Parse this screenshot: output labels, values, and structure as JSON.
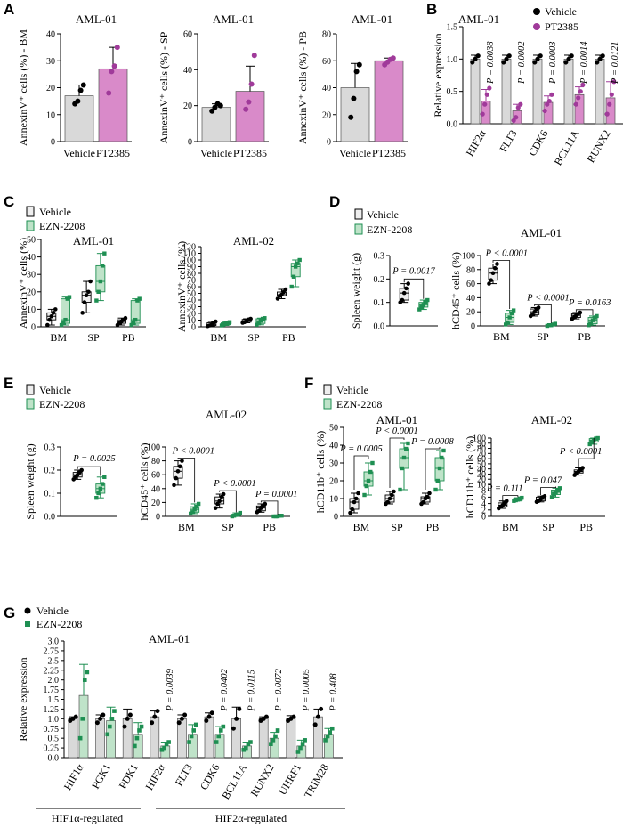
{
  "colors": {
    "vehicle": "#000000",
    "pt2385": "#a03a9a",
    "pt2385_bar": "#d98ac9",
    "vehicle_bar": "#d9d9d9",
    "ezn": "#1e8f52",
    "ezn_box": "#bfe3c9",
    "vehicle_box": "#eeeeee"
  },
  "panels": {
    "A": "A",
    "B": "B",
    "C": "C",
    "D": "D",
    "E": "E",
    "F": "F",
    "G": "G"
  },
  "legend": {
    "vehicle": "Vehicle",
    "pt2385": "PT2385",
    "ezn": "EZN-2208"
  },
  "chart_data": [
    {
      "id": "A1",
      "type": "bar",
      "title": "AML-01",
      "ylabel": "AnnexinV⁺ cells (%) - BM",
      "categories": [
        "Vehicle",
        "PT2385"
      ],
      "means": [
        17,
        27
      ],
      "sd": [
        4,
        8
      ],
      "ylim": [
        0,
        40
      ],
      "yticks": [
        0,
        10,
        20,
        30,
        40
      ],
      "points": [
        [
          14,
          15,
          19,
          21
        ],
        [
          18,
          26,
          28,
          35
        ]
      ]
    },
    {
      "id": "A2",
      "type": "bar",
      "title": "AML-01",
      "ylabel": "AnnexinV⁺ cells (%) - SP",
      "categories": [
        "Vehicle",
        "PT2385"
      ],
      "means": [
        19,
        28
      ],
      "sd": [
        2,
        14
      ],
      "ylim": [
        0,
        60
      ],
      "yticks": [
        0,
        20,
        40,
        60
      ],
      "points": [
        [
          17,
          19,
          21,
          20
        ],
        [
          18,
          22,
          32,
          48
        ]
      ]
    },
    {
      "id": "A3",
      "type": "bar",
      "title": "AML-01",
      "ylabel": "AnnexinV⁺ cells (%) - PB",
      "categories": [
        "Vehicle",
        "PT2385"
      ],
      "means": [
        40,
        60
      ],
      "sd": [
        18,
        2
      ],
      "ylim": [
        0,
        80
      ],
      "yticks": [
        0,
        20,
        40,
        60,
        80
      ],
      "points": [
        [
          18,
          32,
          52,
          57
        ],
        [
          57,
          59,
          61,
          62
        ]
      ]
    },
    {
      "id": "B",
      "type": "bar",
      "title": "AML-01",
      "ylabel": "Relative expression",
      "categories": [
        "HIF2α",
        "FLT3",
        "CDK6",
        "BCL11A",
        "RUNX2"
      ],
      "series": [
        {
          "name": "Vehicle",
          "means": [
            1.0,
            1.0,
            1.0,
            1.0,
            1.0
          ],
          "sd": [
            0.06,
            0.06,
            0.06,
            0.06,
            0.06
          ]
        },
        {
          "name": "PT2385",
          "means": [
            0.35,
            0.2,
            0.33,
            0.45,
            0.4
          ],
          "sd": [
            0.18,
            0.1,
            0.1,
            0.12,
            0.25
          ]
        }
      ],
      "points_vehicle": [
        [
          0.95,
          1.0,
          1.05
        ],
        [
          0.95,
          1.0,
          1.05
        ],
        [
          0.95,
          1.0,
          1.05
        ],
        [
          0.95,
          1.0,
          1.05
        ],
        [
          0.95,
          1.0,
          1.05
        ]
      ],
      "points_pt": [
        [
          0.15,
          0.3,
          0.45,
          0.55
        ],
        [
          0.05,
          0.1,
          0.25,
          0.3
        ],
        [
          0.2,
          0.3,
          0.35,
          0.45
        ],
        [
          0.3,
          0.4,
          0.5,
          0.6
        ],
        [
          0.15,
          0.3,
          0.45,
          0.65
        ]
      ],
      "pvalues": [
        "P = 0.0038",
        "P = 0.0002",
        "P = 0.0003",
        "P = 0.0014",
        "P = 0.0121"
      ],
      "ylim": [
        0,
        1.5
      ],
      "yticks": [
        "0.0",
        "0.5",
        "1.0",
        "1.5"
      ]
    },
    {
      "id": "C1",
      "type": "box",
      "title": "AML-01",
      "ylabel": "AnnexinV⁺ cells (%)",
      "categories": [
        "BM",
        "SP",
        "PB"
      ],
      "ylim": [
        0,
        50
      ],
      "yticks": [
        0,
        10,
        20,
        30,
        40,
        50
      ],
      "vehicle": [
        [
          1,
          4,
          6,
          8,
          10
        ],
        [
          8,
          14,
          18,
          20,
          26
        ],
        [
          1,
          2,
          3,
          4,
          5
        ]
      ],
      "ezn": [
        [
          1,
          2,
          4,
          16,
          17
        ],
        [
          15,
          20,
          26,
          35,
          42
        ],
        [
          1,
          2,
          4,
          15,
          16
        ]
      ]
    },
    {
      "id": "C2",
      "type": "box",
      "title": "AML-02",
      "ylabel": "AnnexinV⁺ cells (%)",
      "categories": [
        "BM",
        "SP",
        "PB"
      ],
      "ylim": [
        0,
        120
      ],
      "yticks": [
        0,
        10,
        20,
        30,
        40,
        50,
        60,
        70,
        80,
        90,
        100,
        110,
        120
      ],
      "vehicle": [
        [
          1,
          2,
          3,
          6,
          8
        ],
        [
          6,
          7,
          9,
          11,
          12
        ],
        [
          42,
          46,
          48,
          52,
          56
        ]
      ],
      "ezn": [
        [
          2,
          3,
          5,
          6,
          7
        ],
        [
          3,
          5,
          9,
          12,
          13
        ],
        [
          60,
          75,
          90,
          95,
          100
        ]
      ]
    },
    {
      "id": "D1",
      "type": "box",
      "title": "",
      "ylabel": "Spleen weight (g)",
      "categories": [
        "Vehicle",
        "EZN-2208"
      ],
      "ylim": [
        0,
        0.3
      ],
      "yticks": [
        "0.0",
        "0.1",
        "0.2",
        "0.3"
      ],
      "vehicle": [
        [
          0.1,
          0.11,
          0.14,
          0.16,
          0.18
        ]
      ],
      "ezn": [
        [
          0.07,
          0.08,
          0.09,
          0.1,
          0.11
        ]
      ],
      "pvalue": "P = 0.0017"
    },
    {
      "id": "D2",
      "type": "box",
      "title": "AML-01",
      "ylabel": "hCD45⁺ cells (%)",
      "categories": [
        "BM",
        "SP",
        "PB"
      ],
      "ylim": [
        0,
        100
      ],
      "yticks": [
        0,
        20,
        40,
        60,
        80,
        100
      ],
      "vehicle": [
        [
          60,
          65,
          75,
          82,
          88
        ],
        [
          14,
          16,
          20,
          24,
          26
        ],
        [
          10,
          12,
          15,
          17,
          19
        ]
      ],
      "ezn": [
        [
          2,
          5,
          12,
          18,
          22
        ],
        [
          0,
          1,
          1,
          2,
          3
        ],
        [
          1,
          3,
          8,
          12,
          14
        ]
      ],
      "pvalues": [
        "P < 0.0001",
        "P < 0.0001",
        "P = 0.0163"
      ]
    },
    {
      "id": "E1",
      "type": "box",
      "title": "",
      "ylabel": "Spleen weight (g)",
      "categories": [
        "Vehicle",
        "EZN-2208"
      ],
      "ylim": [
        0,
        0.3
      ],
      "yticks": [
        "0.0",
        "0.1",
        "0.2",
        "0.3"
      ],
      "vehicle": [
        [
          0.16,
          0.17,
          0.18,
          0.19,
          0.2
        ]
      ],
      "ezn": [
        [
          0.08,
          0.1,
          0.12,
          0.14,
          0.17
        ]
      ],
      "pvalue": "P = 0.0025"
    },
    {
      "id": "E2",
      "type": "box",
      "title": "AML-02",
      "ylabel": "hCD45⁺ cells (%)",
      "categories": [
        "BM",
        "SP",
        "PB"
      ],
      "ylim": [
        0,
        100
      ],
      "yticks": [
        0,
        20,
        40,
        60,
        80,
        100
      ],
      "vehicle": [
        [
          45,
          55,
          65,
          72,
          80
        ],
        [
          12,
          18,
          22,
          28,
          32
        ],
        [
          6,
          8,
          12,
          15,
          18
        ]
      ],
      "ezn": [
        [
          4,
          6,
          10,
          14,
          18
        ],
        [
          0,
          1,
          2,
          3,
          5
        ],
        [
          0,
          0,
          0,
          1,
          1
        ]
      ],
      "pvalues": [
        "P < 0.0001",
        "P < 0.0001",
        "P = 0.0001"
      ]
    },
    {
      "id": "F1",
      "type": "box",
      "title": "AML-01",
      "ylabel": "hCD11b⁺ cells (%)",
      "categories": [
        "BM",
        "SP",
        "PB"
      ],
      "ylim": [
        0,
        50
      ],
      "yticks": [
        0,
        10,
        20,
        30,
        40,
        50
      ],
      "vehicle": [
        [
          2,
          4,
          8,
          10,
          13
        ],
        [
          7,
          8,
          10,
          12,
          14
        ],
        [
          7,
          8,
          10,
          11,
          13
        ]
      ],
      "ezn": [
        [
          12,
          17,
          20,
          25,
          30
        ],
        [
          15,
          27,
          33,
          38,
          41
        ],
        [
          15,
          20,
          27,
          33,
          37
        ]
      ],
      "pvalues": [
        "P = 0.0005",
        "P < 0.0001",
        "P = 0.0008"
      ]
    },
    {
      "id": "F2",
      "type": "box",
      "title": "AML-02",
      "ylabel": "hCD11b⁺ cells (%)",
      "categories": [
        "BM",
        "SP",
        "PB"
      ],
      "ylim": [
        0,
        100
      ],
      "yticks": [
        0,
        2,
        4,
        6,
        8,
        10,
        20,
        30,
        40,
        50,
        60,
        70,
        80,
        90,
        100
      ],
      "vehicle": [
        [
          2.5,
          3,
          3.5,
          4.2,
          4.8
        ],
        [
          4.5,
          4.8,
          5.3,
          6,
          6.3
        ],
        [
          28,
          32,
          35,
          38,
          42
        ]
      ],
      "ezn": [
        [
          4.8,
          5,
          5.2,
          5.6,
          5.8
        ],
        [
          6,
          6.8,
          7.5,
          8.2,
          8.8
        ],
        [
          88,
          92,
          96,
          99,
          100
        ]
      ],
      "pvalues": [
        "P = 0.111",
        "P = 0.047",
        "P < 0.0001"
      ]
    },
    {
      "id": "G",
      "type": "bar",
      "title": "AML-01",
      "ylabel": "Relative expression",
      "categories": [
        "HIF1α",
        "PGK1",
        "PDK1",
        "HIF2α",
        "FLT3",
        "CDK6",
        "BCL11A",
        "RUNX2",
        "UHRF1",
        "TRIM28"
      ],
      "series": [
        {
          "name": "Vehicle",
          "means": [
            1.0,
            1.0,
            1.0,
            1.05,
            1.0,
            1.05,
            1.0,
            1.0,
            1.0,
            1.05
          ],
          "sd": [
            0.05,
            0.1,
            0.25,
            0.15,
            0.1,
            0.1,
            0.3,
            0.05,
            0.08,
            0.2
          ]
        },
        {
          "name": "EZN-2208",
          "means": [
            1.6,
            0.95,
            0.6,
            0.3,
            0.6,
            0.6,
            0.3,
            0.5,
            0.3,
            0.6
          ],
          "sd": [
            0.8,
            0.35,
            0.3,
            0.1,
            0.25,
            0.2,
            0.1,
            0.15,
            0.15,
            0.15
          ]
        }
      ],
      "points_vehicle": [
        [
          0.95,
          1.0,
          1.05
        ],
        [
          0.9,
          1.0,
          1.1
        ],
        [
          0.8,
          1.0,
          1.1
        ],
        [
          0.9,
          1.05,
          1.2
        ],
        [
          0.9,
          1.0,
          1.1
        ],
        [
          0.95,
          1.05,
          1.15
        ],
        [
          0.75,
          1.0,
          1.25
        ],
        [
          0.95,
          1.0,
          1.05
        ],
        [
          0.95,
          1.0,
          1.05
        ],
        [
          0.85,
          1.05,
          1.25
        ]
      ],
      "points_ezn": [
        [
          0.5,
          1.0,
          2.0,
          2.2
        ],
        [
          0.6,
          0.8,
          1.0,
          1.2
        ],
        [
          0.3,
          0.5,
          0.7,
          0.8
        ],
        [
          0.2,
          0.25,
          0.35,
          0.4
        ],
        [
          0.4,
          0.55,
          0.7,
          0.85
        ],
        [
          0.4,
          0.55,
          0.7,
          0.8
        ],
        [
          0.2,
          0.25,
          0.35,
          0.4
        ],
        [
          0.35,
          0.45,
          0.55,
          0.7
        ],
        [
          0.15,
          0.25,
          0.35,
          0.45
        ],
        [
          0.45,
          0.55,
          0.65,
          0.75
        ]
      ],
      "pvalues": [
        "",
        "",
        "",
        "P = 0.0039",
        "",
        "P = 0.0402",
        "P = 0.0115",
        "P = 0.0072",
        "P = 0.0005",
        "P = 0.408"
      ],
      "ylim": [
        0,
        3.0
      ],
      "yticks": [
        "0.0",
        "0.25",
        "0.5",
        "0.75",
        "1.0",
        "1.25",
        "1.5",
        "1.75",
        "2.0",
        "2.25",
        "2.5",
        "2.75",
        "3.0"
      ],
      "group_labels": [
        "HIF1α-regulated",
        "HIF2α-regulated"
      ]
    }
  ]
}
